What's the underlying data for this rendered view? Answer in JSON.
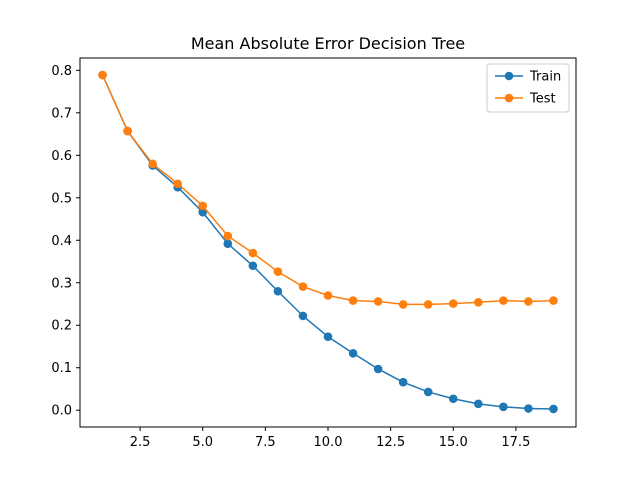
{
  "chart_data": {
    "type": "line",
    "title": "Mean Absolute Error Decision Tree",
    "xlabel": "",
    "ylabel": "",
    "xlim": [
      0.1,
      19.9
    ],
    "ylim": [
      -0.0395,
      0.829
    ],
    "xticks": [
      2.5,
      5.0,
      7.5,
      10.0,
      12.5,
      15.0,
      17.5
    ],
    "xtick_labels": [
      "2.5",
      "5.0",
      "7.5",
      "10.0",
      "12.5",
      "15.0",
      "17.5"
    ],
    "yticks": [
      0.0,
      0.1,
      0.2,
      0.3,
      0.4,
      0.5,
      0.6,
      0.7,
      0.8
    ],
    "ytick_labels": [
      "0.0",
      "0.1",
      "0.2",
      "0.3",
      "0.4",
      "0.5",
      "0.6",
      "0.7",
      "0.8"
    ],
    "grid": false,
    "legend_position": "top-right",
    "x": [
      1,
      2,
      3,
      4,
      5,
      6,
      7,
      8,
      9,
      10,
      11,
      12,
      13,
      14,
      15,
      16,
      17,
      18,
      19
    ],
    "series": [
      {
        "name": "Train",
        "color": "#1f77b4",
        "values": [
          0.789,
          0.657,
          0.576,
          0.525,
          0.466,
          0.392,
          0.34,
          0.28,
          0.222,
          0.173,
          0.134,
          0.097,
          0.066,
          0.043,
          0.027,
          0.015,
          0.008,
          0.004,
          0.003
        ]
      },
      {
        "name": "Test",
        "color": "#ff7f0e",
        "values": [
          0.789,
          0.657,
          0.58,
          0.533,
          0.481,
          0.41,
          0.37,
          0.326,
          0.291,
          0.27,
          0.258,
          0.256,
          0.249,
          0.249,
          0.251,
          0.254,
          0.258,
          0.256,
          0.258
        ]
      }
    ]
  }
}
